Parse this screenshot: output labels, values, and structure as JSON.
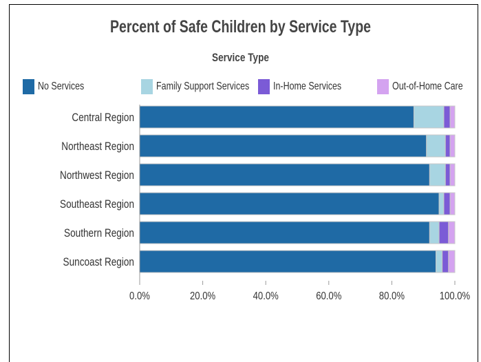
{
  "chart_data": {
    "type": "bar",
    "orientation": "horizontal",
    "stacked": true,
    "title": "Percent of Safe Children by Service Type",
    "legend_title": "Service Type",
    "legend_position": "top",
    "categories": [
      "Central Region",
      "Northeast Region",
      "Northwest Region",
      "Southeast Region",
      "Southern Region",
      "Suncoast Region"
    ],
    "series": [
      {
        "name": "No Services",
        "color": "#1f6aa5",
        "values": [
          87.0,
          91.0,
          92.0,
          95.0,
          92.0,
          94.0
        ]
      },
      {
        "name": "Family Support Services",
        "color": "#a8d5e2",
        "values": [
          9.5,
          6.0,
          5.0,
          1.5,
          3.0,
          2.0
        ]
      },
      {
        "name": "In-Home Services",
        "color": "#7b5bd6",
        "values": [
          2.0,
          1.5,
          1.5,
          2.0,
          3.0,
          2.0
        ]
      },
      {
        "name": "Out-of-Home Care",
        "color": "#d4a3f0",
        "values": [
          1.5,
          1.5,
          1.5,
          1.5,
          2.0,
          2.0
        ]
      }
    ],
    "xlim": [
      0,
      100
    ],
    "ticks": [
      "0.0%",
      "20.0%",
      "40.0%",
      "60.0%",
      "80.0%",
      "100.0%"
    ],
    "grid": false
  }
}
